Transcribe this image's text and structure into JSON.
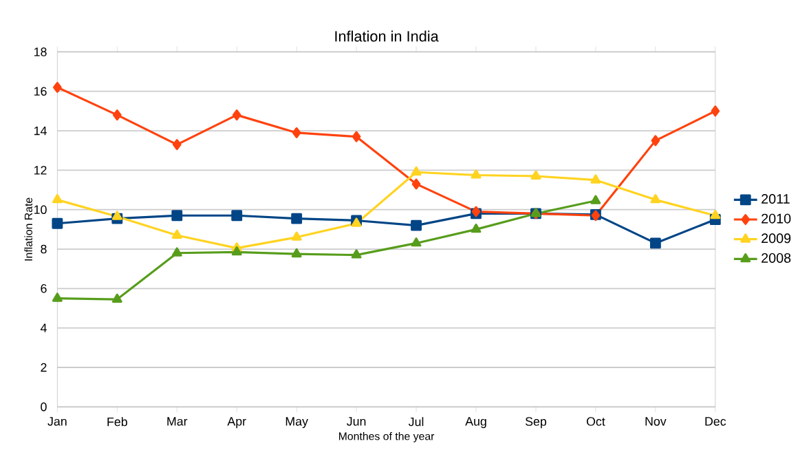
{
  "chart_data": {
    "type": "line",
    "title": "Inflation in India",
    "xlabel": "Monthes of the year",
    "ylabel": "Inflation Rate",
    "categories": [
      "Jan",
      "Feb",
      "Mar",
      "Apr",
      "May",
      "Jun",
      "Jul",
      "Aug",
      "Sep",
      "Oct",
      "Nov",
      "Dec"
    ],
    "series": [
      {
        "name": "2011",
        "color": "#004586",
        "marker": "square",
        "values": [
          9.3,
          9.55,
          9.7,
          9.7,
          9.55,
          9.45,
          9.2,
          9.8,
          9.8,
          9.75,
          8.3,
          9.5
        ]
      },
      {
        "name": "2010",
        "color": "#ff420e",
        "marker": "diamond",
        "values": [
          16.2,
          14.8,
          13.3,
          14.8,
          13.9,
          13.7,
          11.3,
          9.9,
          9.8,
          9.7,
          13.5,
          15.0
        ]
      },
      {
        "name": "2009",
        "color": "#ffd320",
        "marker": "triangle",
        "values": [
          10.5,
          9.65,
          8.7,
          8.05,
          8.6,
          9.3,
          11.9,
          11.75,
          11.7,
          11.5,
          10.5,
          9.7
        ]
      },
      {
        "name": "2008",
        "color": "#579d1c",
        "marker": "triangle",
        "values": [
          5.5,
          5.45,
          7.8,
          7.85,
          7.75,
          7.7,
          8.3,
          9.0,
          9.8,
          10.45,
          null,
          null
        ]
      }
    ],
    "ylim": [
      0,
      18
    ],
    "yticks": [
      0,
      2,
      4,
      6,
      8,
      10,
      12,
      14,
      16,
      18
    ],
    "grid": "y",
    "legend": "right"
  }
}
